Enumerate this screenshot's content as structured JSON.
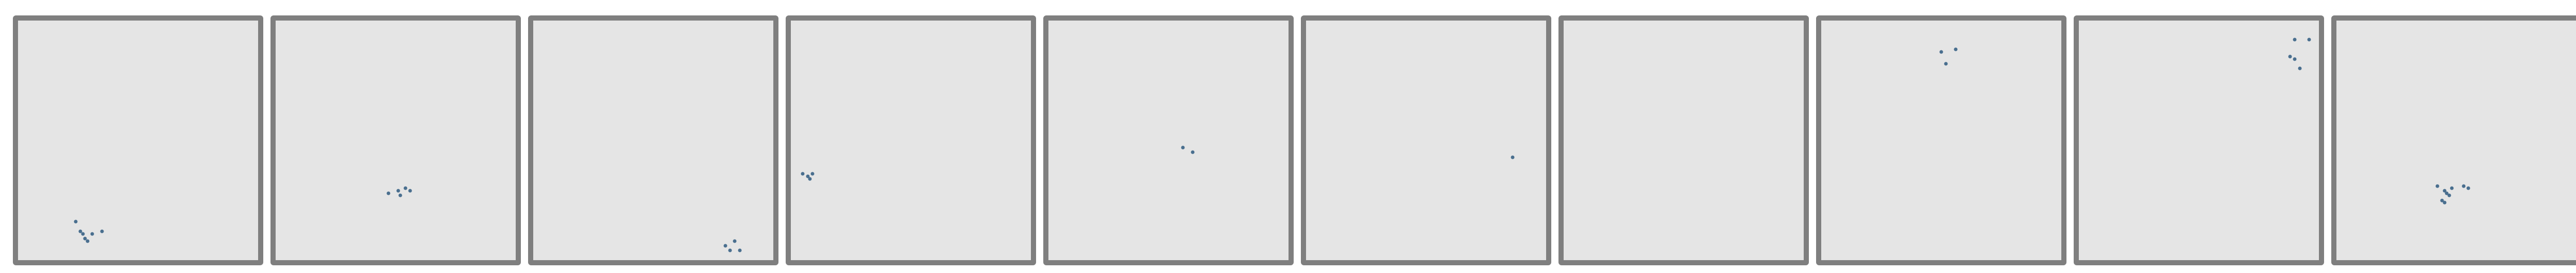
{
  "colors": {
    "page_background": "#ffffff",
    "panel_fill": "#e5e5e5",
    "panel_border": "#7f7f7f",
    "point_color": "#4a6f8f"
  },
  "panels": [
    {
      "id": "1",
      "points": [
        [
          0.24,
          0.84
        ],
        [
          0.26,
          0.88
        ],
        [
          0.27,
          0.89
        ],
        [
          0.28,
          0.91
        ],
        [
          0.31,
          0.89
        ],
        [
          0.35,
          0.88
        ],
        [
          0.29,
          0.92
        ]
      ]
    },
    {
      "id": "2",
      "points": [
        [
          0.47,
          0.72
        ],
        [
          0.51,
          0.71
        ],
        [
          0.54,
          0.7
        ],
        [
          0.56,
          0.71
        ],
        [
          0.52,
          0.73
        ]
      ]
    },
    {
      "id": "3",
      "points": [
        [
          0.8,
          0.94
        ],
        [
          0.82,
          0.96
        ],
        [
          0.84,
          0.92
        ],
        [
          0.86,
          0.96
        ]
      ]
    },
    {
      "id": "4",
      "points": [
        [
          0.05,
          0.64
        ],
        [
          0.07,
          0.65
        ],
        [
          0.08,
          0.66
        ],
        [
          0.09,
          0.64
        ]
      ]
    },
    {
      "id": "5",
      "points": [
        [
          0.56,
          0.53
        ],
        [
          0.6,
          0.55
        ]
      ]
    },
    {
      "id": "6",
      "points": [
        [
          0.86,
          0.57
        ]
      ]
    },
    {
      "id": "7",
      "points": []
    },
    {
      "id": "8",
      "points": [
        [
          0.5,
          0.13
        ],
        [
          0.56,
          0.12
        ],
        [
          0.52,
          0.18
        ]
      ]
    },
    {
      "id": "9",
      "points": [
        [
          0.9,
          0.08
        ],
        [
          0.96,
          0.08
        ],
        [
          0.88,
          0.15
        ],
        [
          0.9,
          0.16
        ],
        [
          0.92,
          0.2
        ]
      ]
    },
    {
      "id": "10",
      "points": [
        [
          0.42,
          0.69
        ],
        [
          0.48,
          0.7
        ],
        [
          0.45,
          0.71
        ],
        [
          0.46,
          0.72
        ],
        [
          0.47,
          0.73
        ],
        [
          0.44,
          0.75
        ],
        [
          0.45,
          0.76
        ],
        [
          0.53,
          0.69
        ],
        [
          0.55,
          0.7
        ]
      ]
    }
  ]
}
